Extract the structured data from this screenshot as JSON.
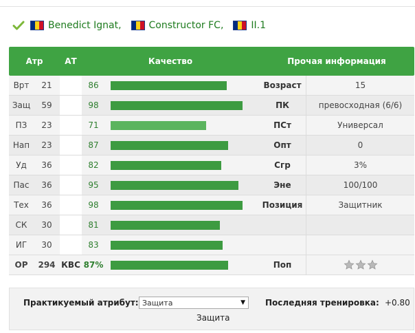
{
  "header": {
    "player_name": "Benedict Ignat",
    "team_name": "Constructor FC",
    "league": "II.1",
    "flag_colors": [
      "#002b7f",
      "#fcd116",
      "#ce1126"
    ]
  },
  "table": {
    "columns": {
      "attr": "Атр",
      "at": "АТ",
      "quality": "Качество",
      "info": "Прочая информация"
    },
    "rows": [
      {
        "attr": "Врт",
        "val": "21",
        "q": "86",
        "q_pct": 86,
        "label": "Возраст",
        "info": "15"
      },
      {
        "attr": "Защ",
        "val": "59",
        "q": "98",
        "q_pct": 98,
        "label": "ПК",
        "info": "превосходная (6/6)"
      },
      {
        "attr": "ПЗ",
        "val": "23",
        "q": "71",
        "q_pct": 71,
        "label": "ПСт",
        "info": "Универсал"
      },
      {
        "attr": "Нап",
        "val": "23",
        "q": "87",
        "q_pct": 87,
        "label": "Опт",
        "info": "0"
      },
      {
        "attr": "Уд",
        "val": "36",
        "q": "82",
        "q_pct": 82,
        "label": "Сгр",
        "info": "3%"
      },
      {
        "attr": "Пас",
        "val": "36",
        "q": "95",
        "q_pct": 95,
        "label": "Эне",
        "info": "100/100"
      },
      {
        "attr": "Тех",
        "val": "36",
        "q": "98",
        "q_pct": 98,
        "label": "Позиция",
        "info": "Защитник"
      },
      {
        "attr": "СК",
        "val": "30",
        "q": "81",
        "q_pct": 81,
        "label": "",
        "info": ""
      },
      {
        "attr": "ИГ",
        "val": "30",
        "q": "83",
        "q_pct": 83,
        "label": "",
        "info": ""
      }
    ],
    "total": {
      "attr": "ОР",
      "val": "294",
      "at": "КВС",
      "q": "87%",
      "q_pct": 87,
      "label": "Поп",
      "stars": 3
    }
  },
  "footer": {
    "practiced_label": "Практикуемый атрибут:",
    "practiced_value": "Защита",
    "last_training_label": "Последняя тренировка:",
    "last_training_value": "+0.80",
    "current_text": "Защита"
  },
  "colors": {
    "header_green": "#3fa343",
    "bar_green": "#3d9b41",
    "link_green": "#1e7b1e"
  }
}
